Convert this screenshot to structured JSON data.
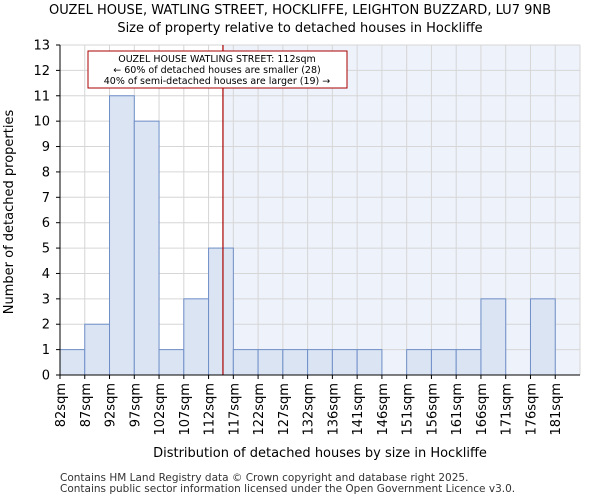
{
  "chart_data": {
    "type": "bar",
    "title": "OUZEL HOUSE, WATLING STREET, HOCKLIFFE, LEIGHTON BUZZARD, LU7 9NB",
    "subtitle": "Size of property relative to detached houses in Hockliffe",
    "xlabel": "Distribution of detached houses by size in Hockliffe",
    "ylabel": "Number of detached properties",
    "categories": [
      "82sqm",
      "87sqm",
      "92sqm",
      "97sqm",
      "102sqm",
      "107sqm",
      "112sqm",
      "117sqm",
      "122sqm",
      "127sqm",
      "132sqm",
      "136sqm",
      "141sqm",
      "146sqm",
      "151sqm",
      "156sqm",
      "161sqm",
      "166sqm",
      "171sqm",
      "176sqm",
      "181sqm"
    ],
    "values": [
      1,
      2,
      11,
      10,
      1,
      3,
      5,
      1,
      1,
      1,
      1,
      1,
      1,
      0,
      1,
      1,
      1,
      3,
      0,
      3,
      0
    ],
    "ylim": [
      0,
      13
    ],
    "yticks": [
      0,
      1,
      2,
      3,
      4,
      5,
      6,
      7,
      8,
      9,
      10,
      11,
      12,
      13
    ],
    "grid": true,
    "marker": {
      "value_sqm": 112,
      "line_color": "#aa0000",
      "annotation_lines": [
        "OUZEL HOUSE WATLING STREET: 112sqm",
        "← 60% of detached houses are smaller (28)",
        "40% of semi-detached houses are larger (19) →"
      ]
    },
    "colors": {
      "bar_fill": "#dbe4f3",
      "bar_stroke": "#6f8fc8",
      "highlight_bg": "#eef2fb",
      "grid": "#d6d6d6"
    }
  },
  "footer": {
    "line1": "Contains HM Land Registry data © Crown copyright and database right 2025.",
    "line2": "Contains public sector information licensed under the Open Government Licence v3.0."
  }
}
